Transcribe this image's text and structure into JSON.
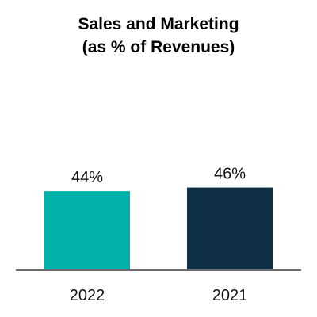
{
  "chart_data": {
    "type": "bar",
    "title": "Sales and Marketing",
    "subtitle": "(as % of Revenues)",
    "categories": [
      "2022",
      "2021"
    ],
    "values": [
      44,
      46
    ],
    "data_labels": [
      "44%",
      "46%"
    ],
    "colors": [
      "#00b2a9",
      "#0e2f46"
    ],
    "axis_color": "#6b6b6b",
    "ylim": [
      0,
      100
    ],
    "grid": false,
    "xlabel": "",
    "ylabel": ""
  }
}
